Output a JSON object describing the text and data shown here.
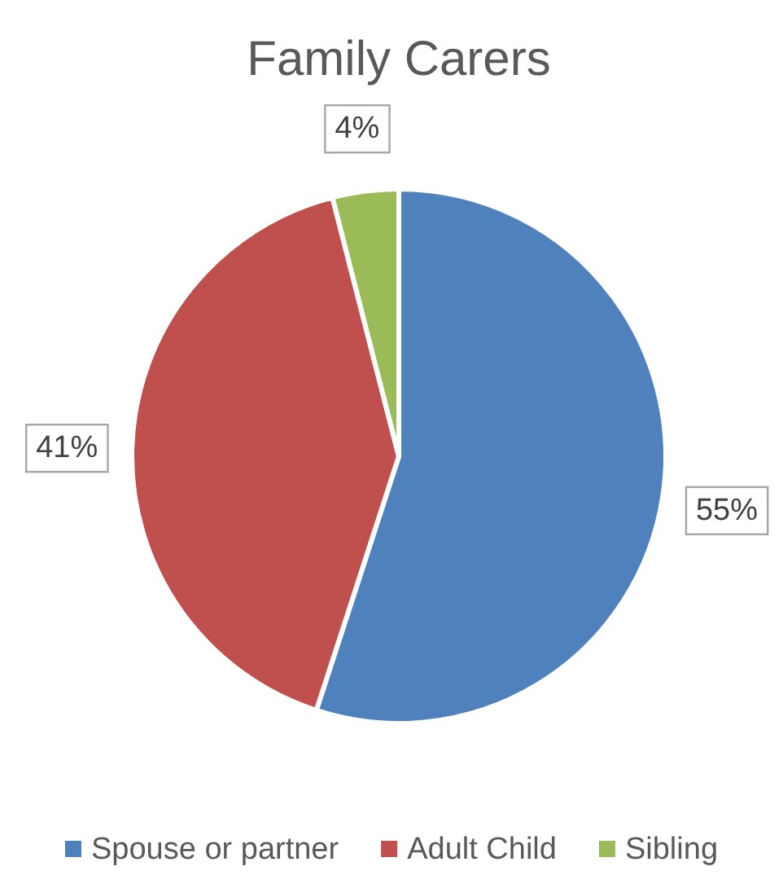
{
  "chart_data": {
    "type": "pie",
    "title": "Family Carers",
    "categories": [
      "Spouse or partner",
      "Adult Child",
      "Sibling"
    ],
    "values": [
      55,
      41,
      4
    ],
    "colors": [
      "#4f81bd",
      "#c0504d",
      "#9bbb59"
    ],
    "value_labels": [
      "55%",
      "41%",
      "4%"
    ],
    "legend": "bottom"
  }
}
